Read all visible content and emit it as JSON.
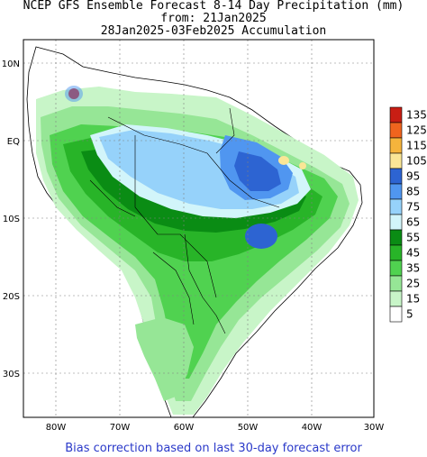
{
  "title": {
    "line1": "NCEP GFS Ensemble Forecast 8-14 Day Precipitation (mm)",
    "line2": "from: 21Jan2025",
    "line3": "28Jan2025-03Feb2025 Accumulation"
  },
  "axes": {
    "lat_labels": [
      "10N",
      "EQ",
      "10S",
      "20S",
      "30S"
    ],
    "lon_labels": [
      "80W",
      "70W",
      "60W",
      "50W",
      "40W",
      "30W"
    ]
  },
  "legend": {
    "items": [
      {
        "label": "135",
        "color": "#c81e14"
      },
      {
        "label": "125",
        "color": "#f0641e"
      },
      {
        "label": "115",
        "color": "#f5b43c"
      },
      {
        "label": "105",
        "color": "#fae696"
      },
      {
        "label": "95",
        "color": "#2d64d2"
      },
      {
        "label": "85",
        "color": "#5096f0"
      },
      {
        "label": "75",
        "color": "#96d2fa"
      },
      {
        "label": "65",
        "color": "#d2f5fa"
      },
      {
        "label": "55",
        "color": "#0a8c14"
      },
      {
        "label": "45",
        "color": "#28b428"
      },
      {
        "label": "35",
        "color": "#50d250"
      },
      {
        "label": "25",
        "color": "#96e696"
      },
      {
        "label": "15",
        "color": "#c8f5c8"
      },
      {
        "label": "5",
        "color": "#ffffff"
      }
    ]
  },
  "footer": "Bias correction based on last 30-day forecast error"
}
